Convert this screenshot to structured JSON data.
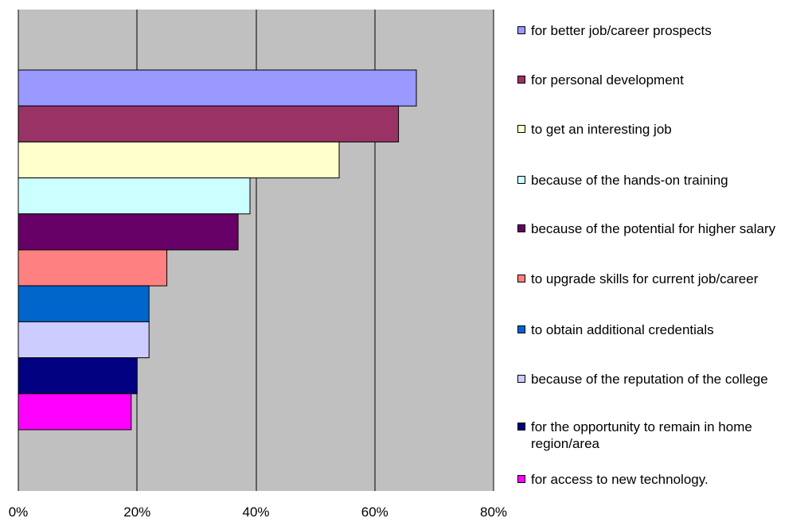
{
  "chart_data": {
    "type": "bar",
    "orientation": "horizontal",
    "categories": [
      "for better job/career prospects",
      "for personal development",
      "to get an interesting job",
      "because of the hands-on training",
      "because of the potential for higher salary",
      "to upgrade skills for current job/career",
      "to obtain additional credentials",
      "because of the reputation of the college",
      "for the opportunity to remain in home region/area",
      "for access to new technology."
    ],
    "values": [
      0.67,
      0.64,
      0.54,
      0.39,
      0.37,
      0.25,
      0.22,
      0.22,
      0.2,
      0.19
    ],
    "colors": [
      "#9999ff",
      "#993366",
      "#ffffcc",
      "#ccffff",
      "#660066",
      "#ff8080",
      "#0066cc",
      "#ccccff",
      "#000080",
      "#ff00ff"
    ],
    "legend_labels": [
      "for better job/career prospects",
      "for personal development",
      "to get an interesting job",
      "because of the hands-on training",
      "because of the potential for higher salary",
      "to upgrade skills for current job/career",
      "to obtain additional credentials",
      "because of the reputation of the college",
      "for the opportunity to remain in home region/area",
      "for access to new technology."
    ],
    "xlim": [
      0,
      0.8
    ],
    "x_ticks": [
      0,
      0.2,
      0.4,
      0.6,
      0.8
    ],
    "x_tick_labels": [
      "0%",
      "20%",
      "40%",
      "60%",
      "80%"
    ],
    "grid": true,
    "plot_background": "#c0c0c0",
    "legend_position": "right"
  }
}
